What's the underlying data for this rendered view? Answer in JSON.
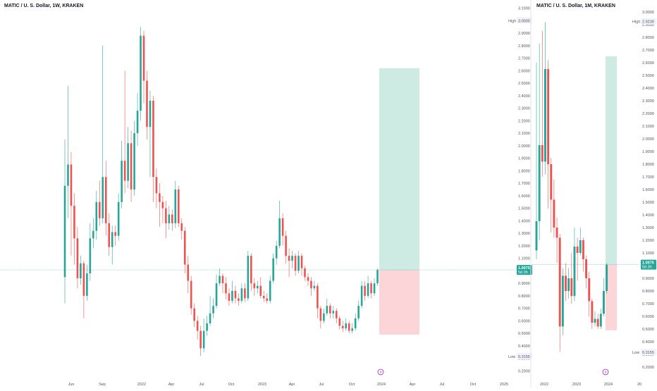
{
  "colors": {
    "up": "#26a69a",
    "down": "#ef5350",
    "profit_zone": "#cdeae3",
    "loss_zone": "#fbd5d8",
    "price_line": "#b2dfdb",
    "badge_bg": "#26a69a",
    "badge_text": "#ffffff",
    "axis_text": "#50535e",
    "divider": "#e0e3eb",
    "event_icon": "#9c27b0"
  },
  "chart_data": [
    {
      "type": "candlestick",
      "title": "MATIC / U. S. Dollar, 1W, KRAKEN",
      "y_axis": {
        "ticks": [
          "3.1000",
          "3.0000",
          "2.9000",
          "2.8000",
          "2.7000",
          "2.6000",
          "2.5000",
          "2.4000",
          "2.3000",
          "2.2000",
          "2.1000",
          "2.0000",
          "1.9000",
          "1.8000",
          "1.7000",
          "1.6000",
          "1.5000",
          "1.4000",
          "1.3000",
          "1.2000",
          "1.1000",
          "1.0000",
          "0.9000",
          "0.8000",
          "0.7000",
          "0.6000",
          "0.5000",
          "0.4000",
          "0.3000",
          "0.2000"
        ],
        "ylim": [
          0.18,
          3.12
        ]
      },
      "x_axis": {
        "ticks": [
          "Jun",
          "Sep",
          "2022",
          "Apr",
          "Jul",
          "Oct",
          "2023",
          "Apr",
          "Jul",
          "Oct",
          "2024",
          "Apr",
          "Jul",
          "Oct",
          "2025"
        ]
      },
      "labels": {
        "high_label": "High",
        "high_value": "3.0000",
        "low_label": "Low",
        "low_value": "0.3155",
        "last_price": "1.0075",
        "countdown": "5d 3h"
      },
      "position": {
        "entry": 1.0075,
        "target": 2.62,
        "stop": 0.49
      },
      "candles": [
        [
          0.95,
          1.68,
          2.05,
          0.74
        ],
        [
          1.68,
          1.85,
          2.48,
          1.42
        ],
        [
          1.85,
          1.52,
          1.95,
          1.12
        ],
        [
          1.52,
          1.26,
          1.62,
          1.05
        ],
        [
          1.26,
          0.94,
          1.35,
          0.86
        ],
        [
          0.94,
          1.06,
          1.12,
          0.89
        ],
        [
          1.06,
          0.8,
          1.08,
          0.62
        ],
        [
          0.8,
          0.98,
          1.05,
          0.76
        ],
        [
          0.98,
          1.26,
          1.38,
          0.92
        ],
        [
          1.26,
          1.32,
          1.42,
          1.18
        ],
        [
          1.32,
          1.55,
          1.64,
          1.25
        ],
        [
          1.55,
          1.42,
          1.72,
          1.36
        ],
        [
          1.42,
          1.75,
          2.8,
          1.38
        ],
        [
          1.75,
          1.38,
          1.88,
          1.28
        ],
        [
          1.38,
          1.19,
          1.46,
          1.12
        ],
        [
          1.19,
          1.31,
          1.36,
          1.05
        ],
        [
          1.31,
          1.28,
          1.36,
          1.2
        ],
        [
          1.28,
          1.55,
          1.62,
          1.24
        ],
        [
          1.55,
          1.88,
          2.04,
          1.5
        ],
        [
          1.88,
          1.72,
          2.6,
          1.62
        ],
        [
          1.72,
          2.02,
          2.15,
          1.66
        ],
        [
          2.02,
          1.65,
          2.12,
          1.55
        ],
        [
          1.65,
          2.1,
          2.2,
          1.6
        ],
        [
          2.1,
          2.28,
          2.42,
          2.0
        ],
        [
          2.28,
          2.88,
          2.95,
          2.2
        ],
        [
          2.88,
          2.52,
          2.92,
          2.34
        ],
        [
          2.52,
          2.15,
          2.6,
          2.05
        ],
        [
          2.15,
          2.36,
          2.44,
          1.75
        ],
        [
          2.36,
          1.75,
          2.4,
          1.55
        ],
        [
          1.75,
          1.62,
          1.82,
          1.5
        ],
        [
          1.62,
          1.55,
          1.7,
          1.35
        ],
        [
          1.55,
          1.5,
          1.6,
          1.38
        ],
        [
          1.5,
          1.38,
          1.56,
          1.26
        ],
        [
          1.38,
          1.45,
          1.52,
          1.33
        ],
        [
          1.45,
          1.38,
          1.49,
          1.32
        ],
        [
          1.38,
          1.65,
          1.72,
          1.34
        ],
        [
          1.65,
          1.38,
          1.68,
          1.35
        ],
        [
          1.38,
          1.32,
          1.42,
          1.25
        ],
        [
          1.32,
          1.05,
          1.35,
          0.98
        ],
        [
          1.05,
          0.92,
          1.12,
          0.82
        ],
        [
          0.92,
          0.7,
          0.96,
          0.65
        ],
        [
          0.7,
          0.6,
          0.74,
          0.55
        ],
        [
          0.6,
          0.52,
          0.64,
          0.45
        ],
        [
          0.52,
          0.38,
          0.56,
          0.32
        ],
        [
          0.38,
          0.52,
          0.62,
          0.35
        ],
        [
          0.52,
          0.58,
          0.64,
          0.48
        ],
        [
          0.58,
          0.66,
          0.8,
          0.56
        ],
        [
          0.66,
          0.72,
          0.78,
          0.62
        ],
        [
          0.72,
          0.9,
          0.97,
          0.7
        ],
        [
          0.9,
          0.96,
          1.02,
          0.88
        ],
        [
          0.96,
          0.9,
          0.98,
          0.82
        ],
        [
          0.9,
          0.82,
          0.95,
          0.77
        ],
        [
          0.82,
          0.76,
          0.86,
          0.72
        ],
        [
          0.76,
          0.84,
          0.92,
          0.74
        ],
        [
          0.84,
          0.78,
          0.88,
          0.74
        ],
        [
          0.78,
          0.76,
          0.82,
          0.72
        ],
        [
          0.76,
          0.86,
          0.9,
          0.74
        ],
        [
          0.86,
          0.78,
          0.9,
          0.75
        ],
        [
          0.78,
          1.12,
          1.16,
          0.76
        ],
        [
          1.12,
          0.9,
          1.14,
          0.84
        ],
        [
          0.9,
          0.86,
          0.94,
          0.8
        ],
        [
          0.86,
          0.88,
          0.92,
          0.82
        ],
        [
          0.88,
          0.8,
          0.95,
          0.78
        ],
        [
          0.8,
          0.78,
          0.84,
          0.75
        ],
        [
          0.78,
          0.76,
          0.82,
          0.74
        ],
        [
          0.76,
          0.92,
          0.96,
          0.74
        ],
        [
          0.92,
          1.1,
          1.14,
          0.9
        ],
        [
          1.1,
          1.2,
          1.24,
          1.05
        ],
        [
          1.2,
          1.42,
          1.56,
          1.18
        ],
        [
          1.42,
          1.28,
          1.46,
          1.2
        ],
        [
          1.28,
          1.12,
          1.32,
          1.06
        ],
        [
          1.12,
          1.08,
          1.18,
          0.95
        ],
        [
          1.08,
          1.12,
          1.16,
          1.02
        ],
        [
          1.12,
          1.0,
          1.14,
          0.96
        ],
        [
          1.0,
          1.12,
          1.16,
          0.98
        ],
        [
          1.12,
          1.02,
          1.14,
          0.96
        ],
        [
          1.02,
          0.95,
          1.04,
          0.92
        ],
        [
          0.95,
          0.92,
          0.98,
          0.88
        ],
        [
          0.92,
          0.86,
          0.95,
          0.8
        ],
        [
          0.86,
          0.88,
          0.92,
          0.84
        ],
        [
          0.88,
          0.7,
          0.9,
          0.62
        ],
        [
          0.7,
          0.6,
          0.72,
          0.54
        ],
        [
          0.6,
          0.66,
          0.7,
          0.58
        ],
        [
          0.66,
          0.72,
          0.78,
          0.64
        ],
        [
          0.72,
          0.66,
          0.74,
          0.62
        ],
        [
          0.66,
          0.68,
          0.72,
          0.62
        ],
        [
          0.68,
          0.62,
          0.7,
          0.58
        ],
        [
          0.62,
          0.56,
          0.64,
          0.53
        ],
        [
          0.56,
          0.54,
          0.6,
          0.51
        ],
        [
          0.54,
          0.58,
          0.62,
          0.52
        ],
        [
          0.58,
          0.52,
          0.6,
          0.5
        ],
        [
          0.52,
          0.54,
          0.58,
          0.5
        ],
        [
          0.54,
          0.62,
          0.66,
          0.52
        ],
        [
          0.62,
          0.72,
          0.76,
          0.6
        ],
        [
          0.72,
          0.88,
          0.92,
          0.7
        ],
        [
          0.88,
          0.8,
          0.92,
          0.76
        ],
        [
          0.8,
          0.9,
          0.96,
          0.78
        ],
        [
          0.9,
          0.82,
          0.92,
          0.78
        ],
        [
          0.82,
          0.9,
          0.94,
          0.8
        ],
        [
          0.9,
          1.0075,
          1.02,
          0.88
        ]
      ]
    },
    {
      "type": "candlestick",
      "title": "MATIC / U. S. Dollar, 1M, KRAKEN",
      "y_axis": {
        "ticks": [
          "3.0000",
          "2.9000",
          "2.8000",
          "2.7000",
          "2.6000",
          "2.5000",
          "2.4000",
          "2.3000",
          "2.2000",
          "2.1000",
          "2.0000",
          "1.9000",
          "1.8000",
          "1.7000",
          "1.6000",
          "1.5000",
          "1.4000",
          "1.3000",
          "1.2000",
          "1.1000",
          "1.0000",
          "0.9000",
          "0.8000",
          "0.7000",
          "0.6000",
          "0.5000",
          "0.4000",
          "0.3000",
          "0.2000"
        ],
        "ylim": [
          0.15,
          3.05
        ]
      },
      "x_axis": {
        "ticks": [
          "2022",
          "2023",
          "2024",
          "20"
        ]
      },
      "labels": {
        "high_label": "High",
        "high_value": "2.9239",
        "low_label": "Low",
        "low_value": "0.3155",
        "last_price": "1.0075",
        "countdown": "5d 3h"
      },
      "position": {
        "entry": 1.0075,
        "target": 2.65,
        "stop": 0.49
      },
      "candles": [
        [
          1.12,
          1.35,
          2.6,
          1.05
        ],
        [
          1.35,
          1.95,
          2.75,
          1.2
        ],
        [
          1.95,
          1.82,
          2.85,
          1.7
        ],
        [
          1.82,
          2.55,
          2.92,
          1.72
        ],
        [
          2.55,
          1.8,
          2.62,
          1.45
        ],
        [
          1.8,
          1.52,
          1.85,
          1.26
        ],
        [
          1.52,
          1.3,
          1.68,
          1.22
        ],
        [
          1.3,
          1.22,
          1.38,
          1.02
        ],
        [
          1.22,
          0.52,
          1.25,
          0.32
        ],
        [
          0.52,
          0.92,
          0.98,
          0.45
        ],
        [
          0.92,
          0.8,
          1.02,
          0.72
        ],
        [
          0.8,
          0.9,
          0.98,
          0.74
        ],
        [
          0.9,
          0.76,
          1.1,
          0.7
        ],
        [
          0.76,
          1.15,
          1.3,
          0.72
        ],
        [
          1.15,
          1.1,
          1.22,
          0.88
        ],
        [
          1.1,
          1.2,
          1.3,
          1.08
        ],
        [
          1.2,
          1.05,
          1.22,
          0.95
        ],
        [
          1.05,
          0.9,
          1.08,
          0.82
        ],
        [
          0.9,
          0.72,
          0.95,
          0.6
        ],
        [
          0.72,
          0.55,
          0.74,
          0.5
        ],
        [
          0.55,
          0.58,
          0.64,
          0.52
        ],
        [
          0.58,
          0.52,
          0.62,
          0.5
        ],
        [
          0.52,
          0.62,
          0.66,
          0.5
        ],
        [
          0.62,
          0.8,
          0.9,
          0.6
        ],
        [
          0.8,
          1.0075,
          1.02,
          0.78
        ]
      ]
    }
  ]
}
